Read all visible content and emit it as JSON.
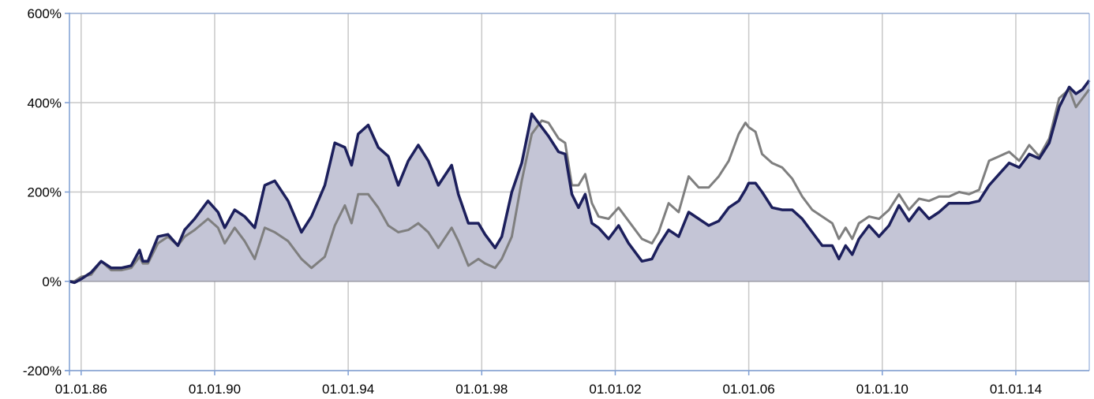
{
  "chart_data": {
    "type": "area",
    "title": "",
    "xlabel": "",
    "ylabel": "",
    "x_ticks": [
      "01.01.86",
      "01.01.90",
      "01.01.94",
      "01.01.98",
      "01.01.02",
      "01.01.06",
      "01.01.10",
      "01.01.14"
    ],
    "x_tick_years": [
      1986,
      1990,
      1994,
      1998,
      2002,
      2006,
      2010,
      2014
    ],
    "y_ticks": [
      "600%",
      "400%",
      "200%",
      "0%",
      "-200%"
    ],
    "y_tick_values": [
      600,
      400,
      200,
      0,
      -200
    ],
    "ylim": [
      -200,
      600
    ],
    "xlim": [
      1985.65,
      2016.2
    ],
    "grid": true,
    "legend": "none",
    "colors": {
      "fund": "#1c1f5c",
      "fund_fill": "#c4c5d6",
      "benchmark": "#7f7f7f",
      "grid": "#c8c8c8",
      "axis": "#7f9fd4"
    },
    "x": [
      1985.65,
      1985.8,
      1986.0,
      1986.3,
      1986.6,
      1986.9,
      1987.2,
      1987.5,
      1987.75,
      1987.85,
      1988.0,
      1988.3,
      1988.6,
      1988.9,
      1989.1,
      1989.4,
      1989.8,
      1990.1,
      1990.3,
      1990.6,
      1990.9,
      1991.2,
      1991.5,
      1991.8,
      1992.2,
      1992.6,
      1992.9,
      1993.3,
      1993.6,
      1993.9,
      1994.1,
      1994.3,
      1994.6,
      1994.9,
      1995.2,
      1995.5,
      1995.8,
      1996.1,
      1996.4,
      1996.7,
      1997.1,
      1997.3,
      1997.6,
      1997.9,
      1998.1,
      1998.4,
      1998.6,
      1998.9,
      1999.2,
      1999.5,
      1999.8,
      2000.0,
      2000.3,
      2000.5,
      2000.7,
      2000.9,
      2001.1,
      2001.3,
      2001.5,
      2001.8,
      2002.1,
      2002.4,
      2002.8,
      2003.1,
      2003.3,
      2003.6,
      2003.9,
      2004.2,
      2004.5,
      2004.8,
      2005.1,
      2005.4,
      2005.7,
      2005.9,
      2006.0,
      2006.2,
      2006.4,
      2006.7,
      2007.0,
      2007.3,
      2007.6,
      2007.9,
      2008.2,
      2008.5,
      2008.7,
      2008.9,
      2009.1,
      2009.3,
      2009.6,
      2009.9,
      2010.2,
      2010.5,
      2010.8,
      2011.1,
      2011.4,
      2011.7,
      2012.0,
      2012.3,
      2012.6,
      2012.9,
      2013.2,
      2013.5,
      2013.8,
      2014.1,
      2014.4,
      2014.7,
      2015.0,
      2015.3,
      2015.6,
      2015.8,
      2016.0,
      2016.2
    ],
    "series": [
      {
        "values": [
          0,
          -3,
          5,
          20,
          45,
          30,
          30,
          35,
          70,
          45,
          45,
          100,
          105,
          80,
          115,
          140,
          180,
          155,
          120,
          160,
          145,
          120,
          215,
          225,
          180,
          110,
          145,
          215,
          310,
          300,
          260,
          330,
          350,
          300,
          280,
          215,
          270,
          305,
          270,
          215,
          260,
          195,
          130,
          130,
          105,
          75,
          100,
          200,
          265,
          375,
          345,
          325,
          290,
          285,
          195,
          165,
          195,
          130,
          120,
          95,
          125,
          85,
          45,
          50,
          80,
          115,
          100,
          155,
          140,
          125,
          135,
          165,
          180,
          205,
          220,
          220,
          200,
          165,
          160,
          160,
          140,
          110,
          80,
          80,
          50,
          80,
          60,
          95,
          125,
          100,
          125,
          170,
          135,
          165,
          140,
          155,
          175,
          175,
          175,
          180,
          215,
          240,
          265,
          255,
          285,
          275,
          310,
          390,
          435,
          420,
          430,
          450
        ]
      },
      {
        "values": [
          0,
          0,
          10,
          15,
          45,
          25,
          25,
          30,
          55,
          40,
          40,
          85,
          100,
          80,
          100,
          115,
          140,
          120,
          85,
          120,
          90,
          50,
          120,
          110,
          90,
          50,
          30,
          55,
          125,
          170,
          130,
          195,
          195,
          165,
          125,
          110,
          115,
          130,
          110,
          75,
          120,
          90,
          35,
          50,
          40,
          30,
          50,
          100,
          225,
          330,
          360,
          355,
          320,
          310,
          215,
          215,
          240,
          175,
          145,
          140,
          165,
          135,
          95,
          85,
          110,
          175,
          155,
          235,
          210,
          210,
          235,
          270,
          330,
          355,
          345,
          335,
          285,
          265,
          255,
          230,
          190,
          160,
          145,
          130,
          95,
          120,
          95,
          130,
          145,
          140,
          160,
          195,
          160,
          185,
          180,
          190,
          190,
          200,
          195,
          205,
          270,
          280,
          290,
          270,
          305,
          280,
          320,
          410,
          430,
          390,
          410,
          430
        ]
      }
    ]
  }
}
